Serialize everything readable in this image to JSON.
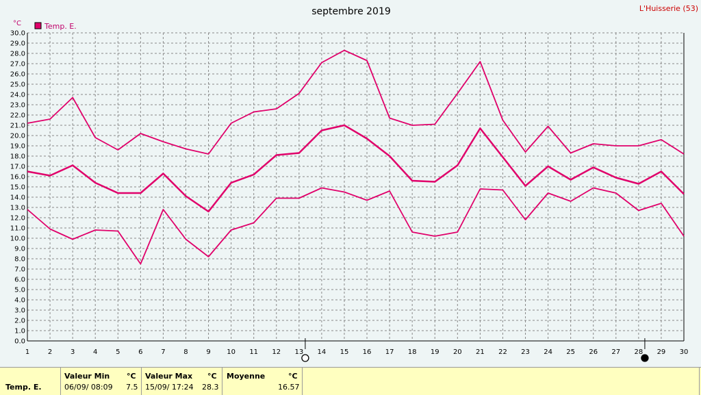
{
  "header": {
    "title": "septembre 2019",
    "location": "L'Huisserie (53)"
  },
  "chart_data": {
    "type": "line",
    "title": "septembre 2019",
    "ylabel": "°C",
    "ylim": [
      0.0,
      30.0
    ],
    "y_ticks": [
      "0.0",
      "1.0",
      "2.0",
      "3.0",
      "4.0",
      "5.0",
      "6.0",
      "7.0",
      "8.0",
      "9.0",
      "10.0",
      "11.0",
      "12.0",
      "13.0",
      "14.0",
      "15.0",
      "16.0",
      "17.0",
      "18.0",
      "19.0",
      "20.0",
      "21.0",
      "22.0",
      "23.0",
      "24.0",
      "25.0",
      "26.0",
      "27.0",
      "28.0",
      "29.0",
      "30.0"
    ],
    "x": [
      1,
      2,
      3,
      4,
      5,
      6,
      7,
      8,
      9,
      10,
      11,
      12,
      13,
      14,
      15,
      16,
      17,
      18,
      19,
      20,
      21,
      22,
      23,
      24,
      25,
      26,
      27,
      28,
      29,
      30
    ],
    "legend": {
      "label": "Temp. E.",
      "placement": "top-left"
    },
    "grid": true,
    "series": [
      {
        "name": "",
        "kind": "max",
        "values": [
          21.2,
          21.6,
          23.7,
          19.8,
          18.6,
          20.2,
          19.4,
          18.7,
          18.2,
          21.2,
          22.3,
          22.6,
          24.1,
          27.1,
          28.3,
          27.3,
          21.7,
          21.0,
          21.1,
          24.1,
          27.2,
          21.5,
          18.4,
          20.9,
          18.3,
          19.2,
          19.0,
          19.0,
          19.6,
          18.2
        ]
      },
      {
        "name": "",
        "kind": "mean",
        "values": [
          16.5,
          16.1,
          17.1,
          15.4,
          14.4,
          14.4,
          16.3,
          14.1,
          12.6,
          15.4,
          16.2,
          18.1,
          18.3,
          20.5,
          21.0,
          19.7,
          18.0,
          15.6,
          15.5,
          17.1,
          20.7,
          17.9,
          15.1,
          17.0,
          15.7,
          16.9,
          15.9,
          15.3,
          16.5,
          14.3
        ]
      },
      {
        "name": "",
        "kind": "min",
        "values": [
          12.8,
          10.9,
          9.9,
          10.8,
          10.7,
          7.5,
          12.8,
          9.9,
          8.2,
          10.8,
          11.5,
          13.9,
          13.9,
          14.9,
          14.5,
          13.7,
          14.6,
          10.6,
          10.2,
          10.6,
          14.8,
          14.7,
          11.8,
          14.4,
          13.6,
          14.9,
          14.4,
          12.7,
          13.4,
          10.2
        ]
      }
    ],
    "moon_phases": [
      {
        "day": 14,
        "phase": "full-moon"
      },
      {
        "day": 29,
        "phase": "new-moon"
      }
    ],
    "line_color": "#e0006a"
  },
  "stats": {
    "series_label": "Temp. E.",
    "min_header": "Valeur Min",
    "min_unit": "°C",
    "min_date": "06/09/  08:09",
    "min_value": "7.5",
    "max_header": "Valeur Max",
    "max_unit": "°C",
    "max_date": "15/09/  17:24",
    "max_value": "28.3",
    "mean_header": "Moyenne",
    "mean_unit": "°C",
    "mean_value": "16.57"
  }
}
